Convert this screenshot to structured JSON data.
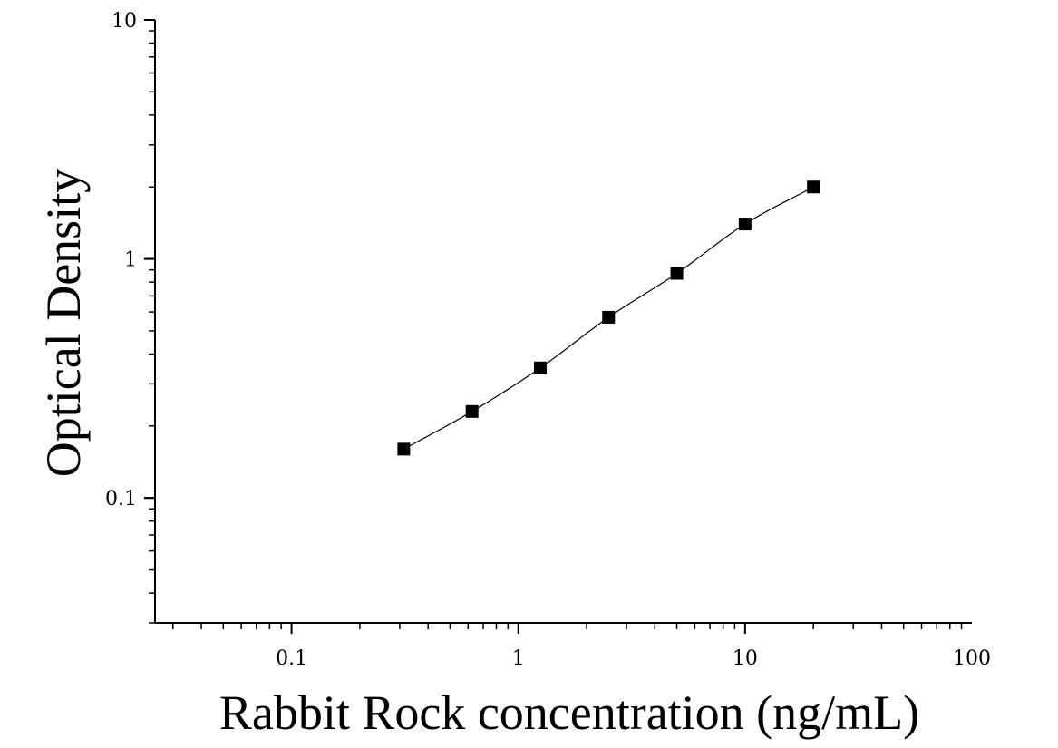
{
  "chart_data": {
    "type": "scatter",
    "title": "",
    "xlabel": "Rabbit Rock concentration (ng/mL)",
    "ylabel": "Optical Density",
    "x_scale": "log",
    "y_scale": "log",
    "xlim": [
      0.025,
      100
    ],
    "ylim": [
      0.03,
      10
    ],
    "x_ticks": [
      {
        "value": 0.1,
        "label": "0.1"
      },
      {
        "value": 1,
        "label": "1"
      },
      {
        "value": 10,
        "label": "10"
      },
      {
        "value": 100,
        "label": "100"
      }
    ],
    "y_ticks": [
      {
        "value": 0.1,
        "label": "0.1"
      },
      {
        "value": 1,
        "label": "1"
      },
      {
        "value": 10,
        "label": "10"
      }
    ],
    "grid": false,
    "legend": "none",
    "marker_color": "#000000",
    "series": [
      {
        "x": [
          0.3125,
          0.625,
          1.25,
          2.5,
          5,
          10,
          20
        ],
        "y": [
          0.16,
          0.23,
          0.35,
          0.57,
          0.87,
          1.4,
          2.0
        ],
        "marker": "square",
        "fit_line": true
      }
    ]
  }
}
